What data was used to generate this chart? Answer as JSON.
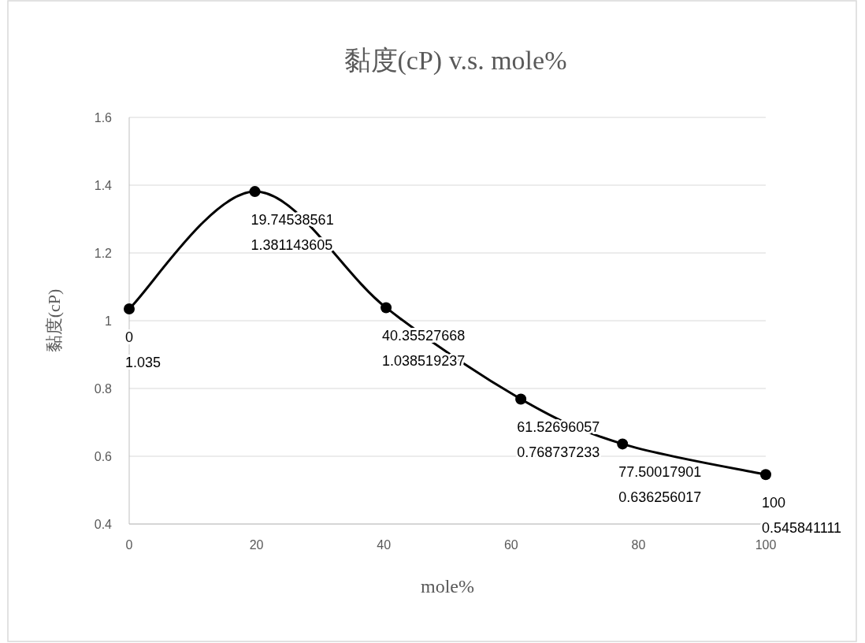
{
  "chart_data": {
    "type": "line",
    "title": "黏度(cP) v.s. mole%",
    "xlabel": "mole%",
    "ylabel": "黏度(cP)",
    "x": [
      0,
      19.74538561,
      40.35527668,
      61.52696057,
      77.50017901,
      100
    ],
    "series": [
      {
        "color": "#000000",
        "values": [
          1.035,
          1.381143605,
          1.038519237,
          0.768737233,
          0.636256017,
          0.545841111
        ],
        "value_labels": [
          "0\n1.035",
          "19.74538561\n1.381143605",
          "40.35527668\n1.038519237",
          "61.52696057\n0.768737233",
          "77.50017901\n0.636256017",
          "100\n0.545841111"
        ]
      }
    ],
    "xlim": [
      0,
      100
    ],
    "ylim": [
      0.4,
      1.6
    ],
    "xticks": [
      0,
      20,
      40,
      60,
      80,
      100
    ],
    "yticks": [
      0.4,
      0.6,
      0.8,
      1,
      1.2,
      1.4,
      1.6
    ],
    "grid": "y",
    "marker": "circle",
    "line_style": "solid"
  }
}
